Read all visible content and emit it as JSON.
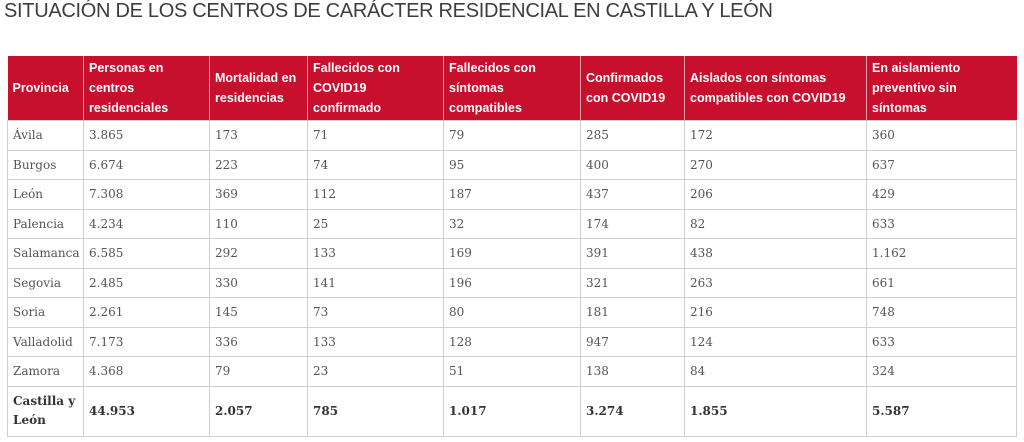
{
  "title": "SITUACIÓN DE LOS CENTROS DE CARÁCTER RESIDENCIAL EN CASTILLA Y LEÓN",
  "headers": [
    "Provincia",
    "Personas en centros residenciales",
    "Mortalidad en residencias",
    "Fallecidos con COVID19 confirmado",
    "Fallecidos con síntomas compatibles",
    "Confirmados con COVID19",
    "Aislados con síntomas compatibles con COVID19",
    "En aislamiento preventivo sin síntomas"
  ],
  "rows": [
    [
      "Ávila",
      "3.865",
      "173",
      "71",
      "79",
      "285",
      "172",
      "360"
    ],
    [
      "Burgos",
      "6.674",
      "223",
      "74",
      "95",
      "400",
      "270",
      "637"
    ],
    [
      "León",
      "7.308",
      "369",
      "112",
      "187",
      "437",
      "206",
      "429"
    ],
    [
      "Palencia",
      "4.234",
      "110",
      "25",
      "32",
      "174",
      "82",
      "633"
    ],
    [
      "Salamanca",
      "6.585",
      "292",
      "133",
      "169",
      "391",
      "438",
      "1.162"
    ],
    [
      "Segovia",
      "2.485",
      "330",
      "141",
      "196",
      "321",
      "263",
      "661"
    ],
    [
      "Soria",
      "2.261",
      "145",
      "73",
      "80",
      "181",
      "216",
      "748"
    ],
    [
      "Valladolid",
      "7.173",
      "336",
      "133",
      "128",
      "947",
      "124",
      "633"
    ],
    [
      "Zamora",
      "4.368",
      "79",
      "23",
      "51",
      "138",
      "84",
      "324"
    ]
  ],
  "total": [
    "Castilla y León",
    "44.953",
    "2.057",
    "785",
    "1.017",
    "3.274",
    "1.855",
    "5.587"
  ],
  "colors": {
    "header_bg": "#c8102e",
    "header_text": "#ffffff",
    "title_text": "#3d3d3d"
  }
}
